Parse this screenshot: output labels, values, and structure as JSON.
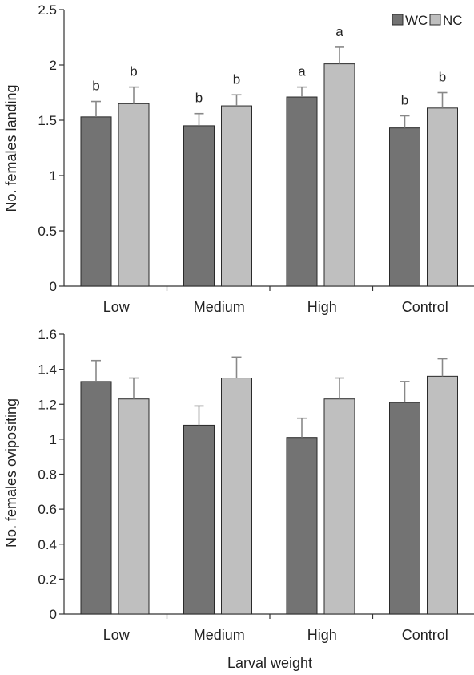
{
  "colors": {
    "WC": "#737373",
    "NC": "#bfbfbf"
  },
  "legend": {
    "wc": "WC",
    "nc": "NC"
  },
  "chart_data": [
    {
      "type": "bar",
      "categories": [
        "Low",
        "Medium",
        "High",
        "Control"
      ],
      "ylabel": "No. females landing",
      "xlabel": "",
      "ylim": [
        0,
        2.5
      ],
      "yticks": [
        0,
        0.5,
        1,
        1.5,
        2,
        2.5
      ],
      "ytick_labels": [
        "0",
        "0.5",
        "1",
        "1.5",
        "2",
        "2.5"
      ],
      "legend": "top-right",
      "grid": false,
      "series": [
        {
          "name": "WC",
          "values": [
            1.53,
            1.45,
            1.71,
            1.43
          ],
          "errors": [
            0.14,
            0.11,
            0.09,
            0.11
          ],
          "letters": [
            "b",
            "b",
            "a",
            "b"
          ]
        },
        {
          "name": "NC",
          "values": [
            1.65,
            1.63,
            2.01,
            1.61
          ],
          "errors": [
            0.15,
            0.1,
            0.15,
            0.14
          ],
          "letters": [
            "b",
            "b",
            "a",
            "b"
          ]
        }
      ]
    },
    {
      "type": "bar",
      "categories": [
        "Low",
        "Medium",
        "High",
        "Control"
      ],
      "ylabel": "No. females ovipositing",
      "xlabel": "Larval weight",
      "ylim": [
        0,
        1.6
      ],
      "yticks": [
        0,
        0.2,
        0.4,
        0.6,
        0.8,
        1,
        1.2,
        1.4,
        1.6
      ],
      "ytick_labels": [
        "0",
        "0.2",
        "0.4",
        "0.6",
        "0.8",
        "1",
        "1.2",
        "1.4",
        "1.6"
      ],
      "grid": false,
      "series": [
        {
          "name": "WC",
          "values": [
            1.33,
            1.08,
            1.01,
            1.21
          ],
          "errors": [
            0.12,
            0.11,
            0.11,
            0.12
          ]
        },
        {
          "name": "NC",
          "values": [
            1.23,
            1.35,
            1.23,
            1.36
          ],
          "errors": [
            0.12,
            0.12,
            0.12,
            0.1
          ]
        }
      ]
    }
  ]
}
